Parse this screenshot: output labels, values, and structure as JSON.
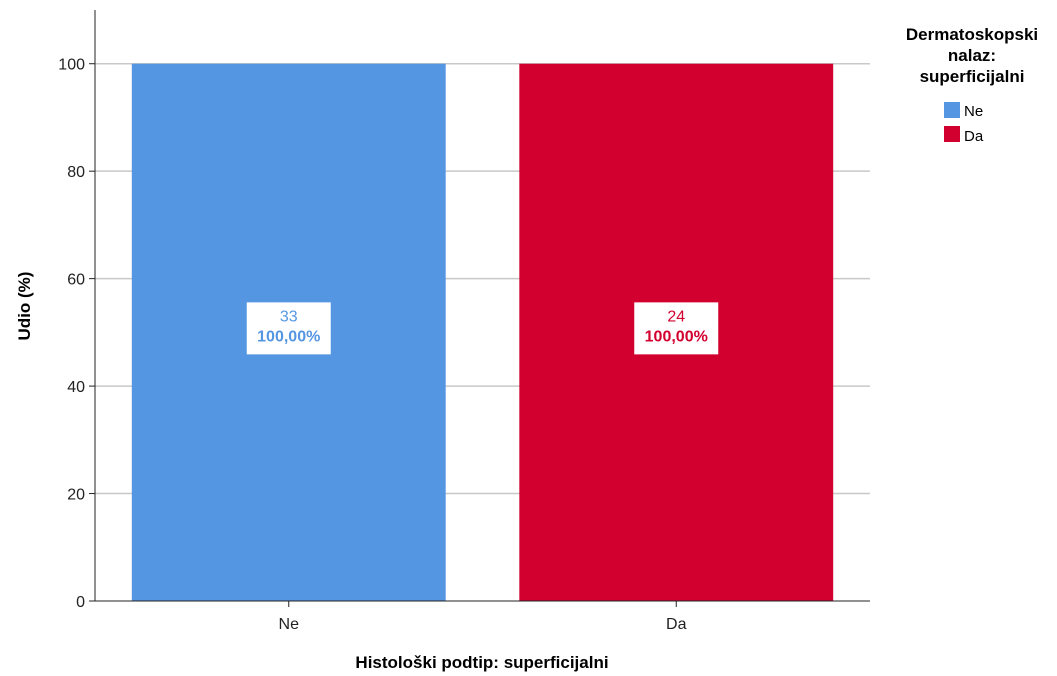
{
  "chart_data": {
    "type": "bar",
    "categories": [
      "Ne",
      "Da"
    ],
    "values": [
      100,
      100
    ],
    "counts": [
      "33",
      "24"
    ],
    "percent_labels": [
      "100,00%",
      "100,00%"
    ],
    "colors": [
      "#5596e3",
      "#d2002e"
    ],
    "xlabel": "Histološki podtip: superficijalni",
    "ylabel": "Udio (%)",
    "ylim": [
      0,
      110
    ],
    "yticks": [
      "0",
      "20",
      "40",
      "60",
      "80",
      "100"
    ],
    "grid": true,
    "legend": {
      "title_lines": [
        "Dermatoskopski",
        "nalaz:",
        "superficijalni"
      ],
      "entries": [
        "Ne",
        "Da"
      ],
      "placement": "top-right"
    }
  }
}
